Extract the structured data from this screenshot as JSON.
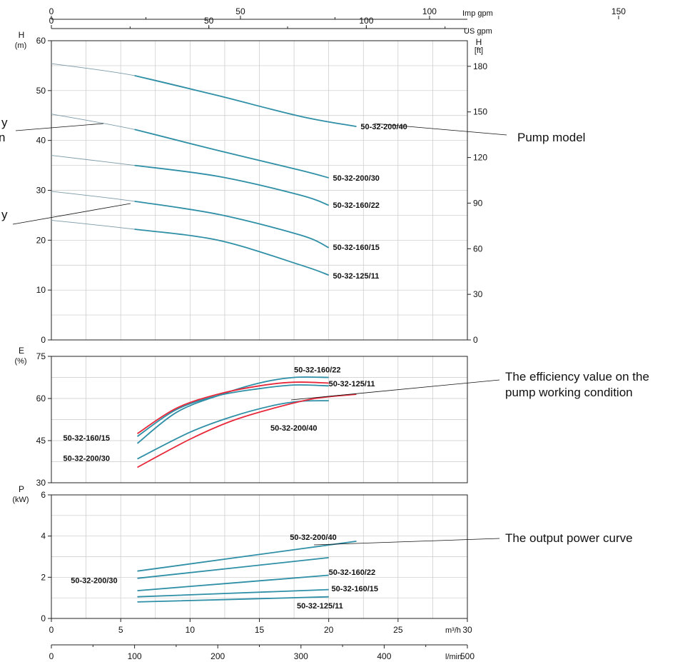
{
  "chart_data": [
    {
      "type": "line",
      "panel": "head",
      "ylabel": "H",
      "yunit": "(m)",
      "ylim": [
        0,
        60
      ],
      "yticks": [
        0,
        10,
        20,
        30,
        40,
        50,
        60
      ],
      "y2label": "H",
      "y2unit": "[ft]",
      "y2ticks": [
        0,
        30,
        60,
        90,
        120,
        150,
        180
      ],
      "xlim": [
        0,
        30
      ],
      "series": [
        {
          "name": "50-32-200/40",
          "color": "#2e8fa6",
          "x": [
            0,
            6,
            12,
            18,
            22
          ],
          "y": [
            55.4,
            53,
            49,
            44.8,
            42.8
          ],
          "solid_from": 6,
          "label_x": 22.3,
          "label_y": 42.8
        },
        {
          "name": "50-32-200/30",
          "color": "#2e8fa6",
          "x": [
            0,
            6,
            12,
            18,
            20
          ],
          "y": [
            45.3,
            42.2,
            38,
            34,
            32.5
          ],
          "solid_from": 6,
          "label_x": 20.3,
          "label_y": 32.5
        },
        {
          "name": "50-32-160/22",
          "color": "#2e8fa6",
          "x": [
            0,
            6,
            12,
            18,
            20
          ],
          "y": [
            37,
            35,
            32.8,
            29,
            27
          ],
          "solid_from": 6,
          "label_x": 20.3,
          "label_y": 27.1
        },
        {
          "name": "50-32-160/15",
          "color": "#2e8fa6",
          "x": [
            0,
            6,
            12,
            18,
            20
          ],
          "y": [
            29.8,
            27.8,
            25.2,
            21,
            18.5
          ],
          "solid_from": 6,
          "label_x": 20.3,
          "label_y": 18.6
        },
        {
          "name": "50-32-125/11",
          "color": "#2e8fa6",
          "x": [
            0,
            6,
            12,
            18,
            20
          ],
          "y": [
            24,
            22.2,
            20,
            15,
            13
          ],
          "solid_from": 6,
          "label_x": 20.3,
          "label_y": 12.9
        }
      ]
    },
    {
      "type": "line",
      "panel": "efficiency",
      "ylabel": "E",
      "yunit": "(%)",
      "ylim": [
        30,
        75
      ],
      "yticks": [
        30,
        45,
        60,
        75
      ],
      "xlim": [
        0,
        30
      ],
      "series": [
        {
          "name": "50-32-160/22",
          "color": "#2e8fa6",
          "x": [
            6.2,
            9,
            12,
            15,
            17.5,
            20
          ],
          "y": [
            44,
            55,
            61,
            65.5,
            67.5,
            67.5
          ],
          "label_x": 17.5,
          "label_y": 70.3
        },
        {
          "name": "50-32-125/11",
          "color": "#2e8fa6",
          "x": [
            6.2,
            9,
            12,
            15,
            17.5,
            20
          ],
          "y": [
            46.5,
            56,
            61,
            63.5,
            64.8,
            64.5
          ],
          "label_x": 20,
          "label_y": 65.4
        },
        {
          "name": "",
          "color": "#e8283a",
          "x": [
            6.2,
            9,
            12,
            15,
            17.5,
            20
          ],
          "y": [
            47.5,
            56.5,
            61.5,
            64.5,
            65.8,
            65.5
          ]
        },
        {
          "name": "50-32-200/30",
          "color": "#2e8fa6",
          "x": [
            6.2,
            10,
            13,
            16,
            18,
            20
          ],
          "y": [
            38.5,
            48,
            53.5,
            57.5,
            59,
            59.2
          ]
        },
        {
          "name": "50-32-200/40",
          "color": "#e8283a",
          "x": [
            6.2,
            10,
            13,
            16,
            19,
            22
          ],
          "y": [
            35.5,
            45.5,
            52,
            56.5,
            60,
            61.5
          ],
          "label_x": 15.8,
          "label_y": 49.6
        }
      ],
      "labels_only": [
        {
          "text": "50-32-160/15",
          "x": 0.85,
          "y": 46
        },
        {
          "text": "50-32-200/30",
          "x": 0.85,
          "y": 38.8
        }
      ]
    },
    {
      "type": "line",
      "panel": "power",
      "ylabel": "P",
      "yunit": "(kW)",
      "ylim": [
        0,
        6
      ],
      "yticks": [
        0,
        2,
        4,
        6
      ],
      "xlim": [
        0,
        30
      ],
      "xticks": [
        0,
        5,
        10,
        15,
        20,
        25,
        30
      ],
      "xunit": "m³/h",
      "series": [
        {
          "name": "50-32-200/40",
          "color": "#2e8fa6",
          "x": [
            6.2,
            22
          ],
          "y": [
            2.3,
            3.75
          ],
          "label_x": 17.2,
          "label_y": 3.95
        },
        {
          "name": "",
          "color": "#2e8fa6",
          "x": [
            6.2,
            20
          ],
          "y": [
            1.95,
            2.95
          ]
        },
        {
          "name": "50-32-160/22",
          "color": "#2e8fa6",
          "x": [
            6.2,
            20
          ],
          "y": [
            1.35,
            2.1
          ],
          "label_x": 20,
          "label_y": 2.25
        },
        {
          "name": "50-32-160/15",
          "color": "#2e8fa6",
          "x": [
            6.2,
            20
          ],
          "y": [
            1.05,
            1.4
          ],
          "label_x": 20.2,
          "label_y": 1.45
        },
        {
          "name": "50-32-125/11",
          "color": "#2e8fa6",
          "x": [
            6.2,
            20
          ],
          "y": [
            0.8,
            1.05
          ],
          "label_x": 17.7,
          "label_y": 0.62
        }
      ],
      "labels_only": [
        {
          "text": "50-32-200/30",
          "x": 1.4,
          "y": 1.85
        }
      ]
    }
  ],
  "top_axes": {
    "imp_gpm": {
      "unit": "Imp gpm",
      "ticks": [
        0,
        50,
        100,
        150
      ]
    },
    "us_gpm": {
      "unit": "US gpm",
      "ticks": [
        0,
        50,
        100
      ]
    }
  },
  "bottom_axis_lmin": {
    "unit": "l/min",
    "ticks": [
      0,
      100,
      200,
      300,
      400,
      500
    ]
  },
  "annotations": {
    "pump_model": "Pump model",
    "efficiency_1": "The efficiency value on the",
    "efficiency_2": "pump working condition",
    "output_power": "The output power curve",
    "cut_left_1a": "y",
    "cut_left_1b": "n",
    "cut_left_2": "y"
  }
}
